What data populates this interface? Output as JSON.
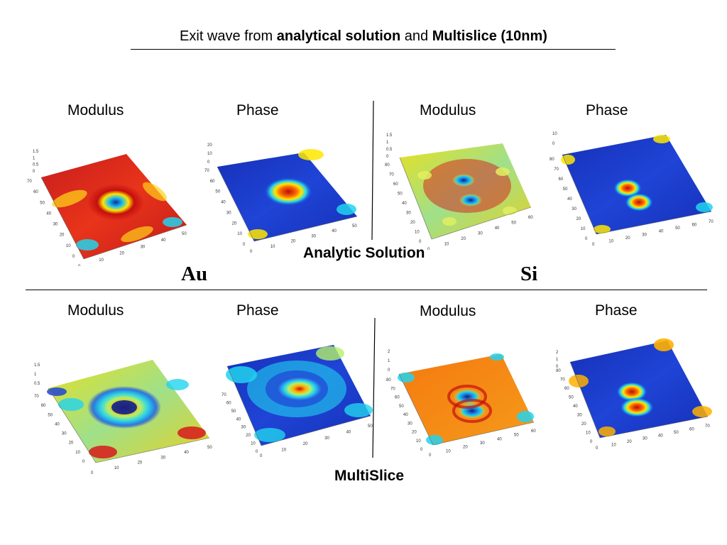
{
  "header": {
    "prefix": "Exit wave from ",
    "bold1": "analytical solution",
    "mid": " and ",
    "bold2": "Multislice (10nm)"
  },
  "labels": {
    "modulus": "Modulus",
    "phase": "Phase"
  },
  "sections": {
    "analytic": "Analytic Solution",
    "multislice": "MultiSlice"
  },
  "elements": {
    "au": "Au",
    "si": "Si"
  },
  "plots": [
    {
      "id": "au-analytic-modulus",
      "z_ticks": [
        "1.5",
        "1",
        "0.5",
        "0"
      ],
      "y_ticks": [
        "70",
        "60",
        "50",
        "40",
        "30",
        "20",
        "10",
        "0"
      ],
      "x_ticks": [
        "0",
        "10",
        "20",
        "30",
        "40",
        "50"
      ]
    },
    {
      "id": "au-analytic-phase",
      "z_ticks": [
        "20",
        "10",
        "0"
      ],
      "y_ticks": [
        "70",
        "60",
        "50",
        "40",
        "30",
        "20",
        "10",
        "0"
      ],
      "x_ticks": [
        "0",
        "10",
        "20",
        "30",
        "40",
        "50"
      ]
    },
    {
      "id": "si-analytic-modulus",
      "z_ticks": [
        "1.5",
        "1",
        "0.5",
        "0"
      ],
      "y_ticks": [
        "80",
        "70",
        "60",
        "50",
        "40",
        "30",
        "20",
        "10",
        "0"
      ],
      "x_ticks": [
        "0",
        "10",
        "20",
        "30",
        "40",
        "50",
        "60"
      ]
    },
    {
      "id": "si-analytic-phase",
      "z_ticks": [
        "10",
        "0"
      ],
      "y_ticks": [
        "80",
        "70",
        "60",
        "50",
        "40",
        "30",
        "20",
        "10",
        "0"
      ],
      "x_ticks": [
        "0",
        "10",
        "20",
        "30",
        "40",
        "50",
        "60",
        "70"
      ]
    },
    {
      "id": "au-multislice-modulus",
      "z_ticks": [
        "1.5",
        "1",
        "0.5"
      ],
      "y_ticks": [
        "70",
        "60",
        "50",
        "40",
        "30",
        "20",
        "10",
        "0"
      ],
      "x_ticks": [
        "0",
        "10",
        "20",
        "30",
        "40",
        "50"
      ]
    },
    {
      "id": "au-multislice-phase",
      "z_ticks": [],
      "y_ticks": [
        "70",
        "60",
        "50",
        "40",
        "30",
        "20",
        "10",
        "0"
      ],
      "x_ticks": [
        "0",
        "10",
        "20",
        "30",
        "40",
        "50"
      ]
    },
    {
      "id": "si-multislice-modulus",
      "z_ticks": [
        "2",
        "1",
        "0"
      ],
      "y_ticks": [
        "80",
        "70",
        "60",
        "50",
        "40",
        "30",
        "20",
        "10",
        "0"
      ],
      "x_ticks": [
        "0",
        "10",
        "20",
        "30",
        "40",
        "50",
        "60"
      ]
    },
    {
      "id": "si-multislice-phase",
      "z_ticks": [
        "2",
        "1",
        "0"
      ],
      "y_ticks": [
        "80",
        "70",
        "60",
        "50",
        "40",
        "30",
        "20",
        "10",
        "0"
      ],
      "x_ticks": [
        "0",
        "10",
        "20",
        "30",
        "40",
        "50",
        "60",
        "70"
      ]
    }
  ],
  "colors": {
    "jet_red": "#d7191c",
    "jet_orange": "#ff8c00",
    "jet_yellow": "#ffe600",
    "jet_cyan": "#22d3ee",
    "jet_blue": "#1e3fcf",
    "jet_navy": "#0a1f8f"
  }
}
